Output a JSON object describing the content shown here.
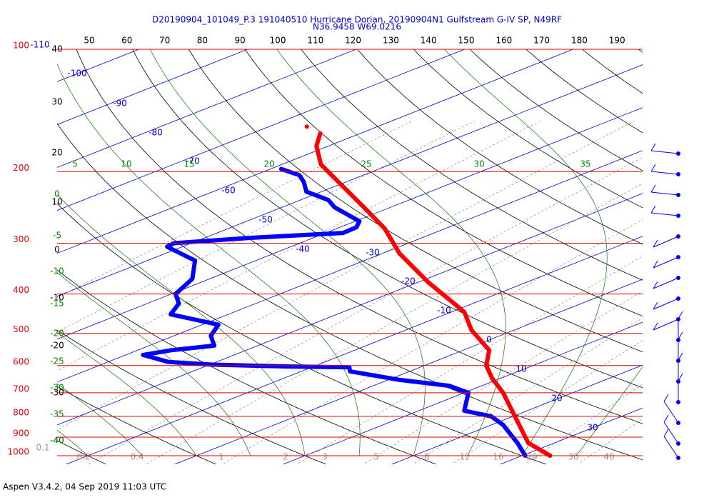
{
  "chart_data": {
    "type": "skewt",
    "title": "D20190904_101049_P.3 191040510 Hurricane Dorian, 20190904N1 Gulfstream G-IV SP, N49RF",
    "subtitle": "N36.9458 W69.0216",
    "footer": "Aspen V3.4.2, 04 Sep 2019  11:03 UTC",
    "ylim": [
      100,
      1000
    ],
    "yticks": [
      100,
      200,
      300,
      400,
      500,
      600,
      700,
      800,
      900,
      1000
    ],
    "isotherms": [
      -110,
      -100,
      -90,
      -80,
      -70,
      -60,
      -50,
      -40,
      -30,
      -20,
      -10,
      0,
      10,
      20,
      30
    ],
    "dry_adiabats_left": [
      40,
      30,
      20,
      10,
      0,
      -10,
      -20,
      -30,
      -40
    ],
    "dry_adiabats_top": [
      50,
      60,
      70,
      80,
      90,
      100,
      110,
      120,
      130,
      140,
      150,
      160,
      170,
      180,
      190
    ],
    "moist_adiabats_top": [
      5,
      10,
      15,
      20,
      25,
      30,
      35
    ],
    "moist_adiabats_left": [
      0,
      -5,
      -10,
      -15,
      -20,
      -25,
      -30,
      -35,
      -40
    ],
    "mixing_ratios": [
      0.1,
      0.2,
      0.4,
      1,
      2,
      3,
      5,
      8,
      12,
      16,
      20,
      30,
      40
    ],
    "series": [
      {
        "color": "#ff0000",
        "pressure": [
          1000,
          930,
          807,
          700,
          646,
          600,
          550,
          491,
          443,
          374,
          318,
          276,
          245,
          208,
          192,
          173,
          161
        ],
        "temperature": [
          32.6,
          27.6,
          20.6,
          13.6,
          9.3,
          5.7,
          2.4,
          -3.9,
          -8.8,
          -19.1,
          -28.4,
          -35.6,
          -42.4,
          -51.8,
          -56.4,
          -61.1,
          -63.7
        ]
      },
      {
        "color": "#0000ff",
        "pressure": [
          1000,
          930,
          840,
          800,
          775,
          700,
          673,
          651,
          620,
          606,
          603,
          597,
          588,
          565,
          550,
          536,
          507,
          476,
          449,
          422,
          400,
          367,
          331,
          306,
          300,
          291,
          283,
          274,
          265,
          245,
          235,
          224,
          212,
          204,
          197
        ],
        "temperature": [
          30.3,
          26.6,
          21.1,
          18.0,
          14.2,
          10.4,
          7.0,
          1.1,
          -5.5,
          -6.5,
          -12.6,
          -19.7,
          -24.4,
          -28.4,
          -26.9,
          -24.0,
          -26.6,
          -28.5,
          -35.3,
          -37.1,
          -39.6,
          -41.6,
          -45.6,
          -51.4,
          -51.6,
          -45.8,
          -38.4,
          -38.5,
          -39.6,
          -45.1,
          -47.4,
          -51.4,
          -53.9,
          -55.9,
          -59.0
        ]
      },
      {
        "color": "#ff0000",
        "pressure": [
          155
        ],
        "temperature": [
          -66.5
        ]
      }
    ]
  }
}
